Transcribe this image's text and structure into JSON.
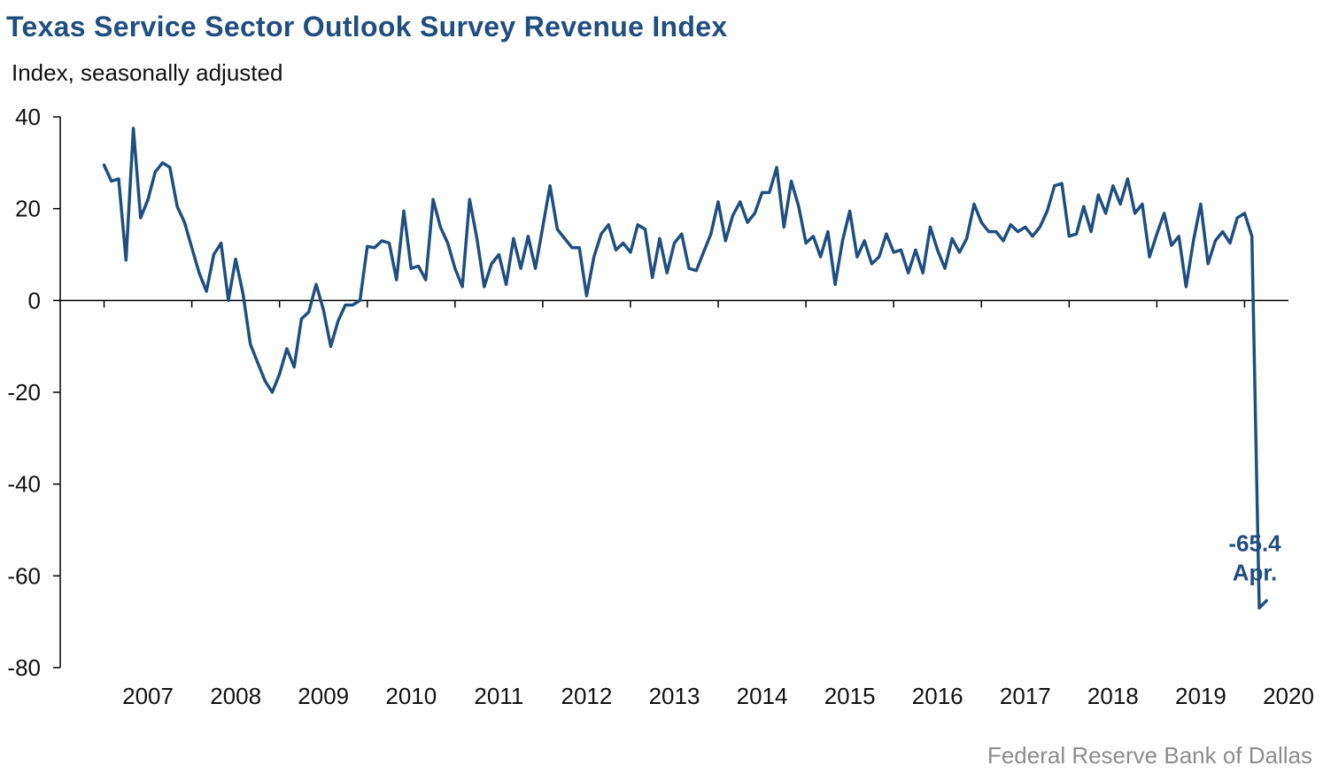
{
  "title": "Texas Service Sector Outlook Survey Revenue Index",
  "subtitle": "Index, seasonally adjusted",
  "source": "Federal Reserve Bank of Dallas",
  "line_color": "#1f4e80",
  "chart_data": {
    "type": "line",
    "ylabel": "Index, seasonally adjusted",
    "ylim": [
      -80,
      40
    ],
    "yticks": [
      40,
      20,
      0,
      -20,
      -40,
      -60,
      -80
    ],
    "xlim": [
      2006.5,
      2020.5
    ],
    "xtick_labels": [
      "2007",
      "2008",
      "2009",
      "2010",
      "2011",
      "2012",
      "2013",
      "2014",
      "2015",
      "2016",
      "2017",
      "2018",
      "2019",
      "2020"
    ],
    "grid": false,
    "start": "2007-01",
    "frequency": "monthly",
    "end": "2020-04",
    "values": [
      29.5,
      26.0,
      26.5,
      8.8,
      37.5,
      18.0,
      22.0,
      28.0,
      30.0,
      29.0,
      20.5,
      17.0,
      11.5,
      6.0,
      2.0,
      10.0,
      12.5,
      0.0,
      9.0,
      1.5,
      -9.5,
      -13.5,
      -17.5,
      -20.0,
      -16.0,
      -10.5,
      -14.5,
      -4.0,
      -2.5,
      3.5,
      -2.0,
      -10.0,
      -4.5,
      -1.0,
      -1.0,
      0.0,
      11.8,
      11.5,
      13.0,
      12.5,
      4.5,
      19.5,
      7.0,
      7.5,
      4.5,
      22.0,
      16.0,
      12.5,
      7.0,
      3.0,
      22.0,
      13.5,
      3.0,
      8.0,
      10.0,
      3.5,
      13.5,
      7.0,
      14.0,
      7.0,
      16.0,
      25.0,
      15.5,
      13.5,
      11.5,
      11.5,
      1.0,
      9.5,
      14.5,
      16.5,
      11.0,
      12.5,
      10.5,
      16.5,
      15.5,
      5.0,
      13.5,
      6.0,
      12.5,
      14.5,
      7.0,
      6.5,
      10.5,
      14.5,
      21.5,
      13.0,
      18.5,
      21.5,
      17.0,
      19.0,
      23.5,
      23.5,
      29.0,
      16.0,
      26.0,
      20.5,
      12.5,
      14.0,
      9.5,
      15.0,
      3.5,
      13.0,
      19.5,
      9.5,
      13.0,
      8.0,
      9.5,
      14.5,
      10.5,
      11.0,
      6.0,
      11.0,
      6.0,
      16.0,
      11.0,
      7.0,
      13.5,
      10.5,
      13.5,
      21.0,
      17.0,
      15.0,
      15.0,
      13.0,
      16.5,
      15.0,
      16.0,
      14.0,
      16.0,
      19.5,
      25.0,
      25.5,
      14.0,
      14.5,
      20.5,
      15.0,
      23.0,
      19.0,
      25.0,
      21.0,
      26.5,
      19.0,
      21.0,
      9.5,
      14.5,
      19.0,
      12.0,
      14.0,
      3.0,
      13.0,
      21.0,
      8.0,
      13.0,
      15.0,
      12.5,
      18.0,
      19.0,
      14.0,
      -67.0,
      -65.4
    ],
    "annotations": [
      {
        "value": "-65.4",
        "label": "Apr."
      }
    ]
  }
}
